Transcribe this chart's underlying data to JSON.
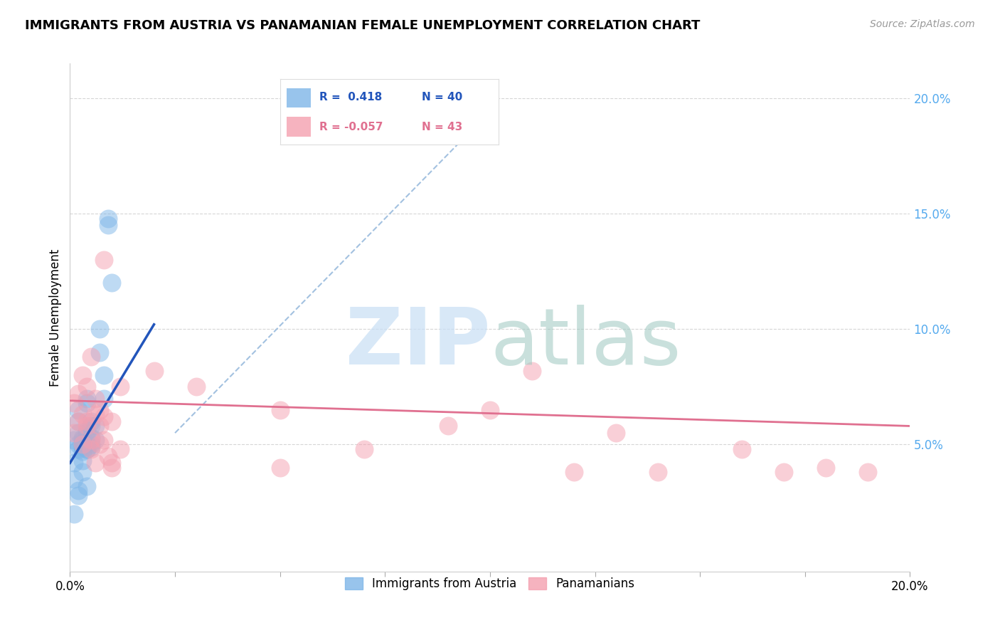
{
  "title": "IMMIGRANTS FROM AUSTRIA VS PANAMANIAN FEMALE UNEMPLOYMENT CORRELATION CHART",
  "source": "Source: ZipAtlas.com",
  "ylabel": "Female Unemployment",
  "xlim": [
    0.0,
    0.2
  ],
  "ylim": [
    -0.005,
    0.215
  ],
  "ytick_vals": [
    0.05,
    0.1,
    0.15,
    0.2
  ],
  "ytick_labels": [
    "5.0%",
    "10.0%",
    "15.0%",
    "20.0%"
  ],
  "xtick_vals": [
    0.0,
    0.025,
    0.05,
    0.075,
    0.1,
    0.125,
    0.15,
    0.175,
    0.2
  ],
  "xtick_labels": [
    "0.0%",
    "",
    "",
    "",
    "",
    "",
    "",
    "",
    "20.0%"
  ],
  "austria_color": "#7eb6e8",
  "panama_color": "#f4a0b0",
  "austria_line_color": "#2255bb",
  "panama_line_color": "#e07090",
  "trendline_dash_color": "#99bbdd",
  "grid_color": "#cccccc",
  "background_color": "#ffffff",
  "austria_scatter": [
    [
      0.001,
      0.052
    ],
    [
      0.002,
      0.05
    ],
    [
      0.002,
      0.048
    ],
    [
      0.002,
      0.055
    ],
    [
      0.003,
      0.05
    ],
    [
      0.003,
      0.049
    ],
    [
      0.003,
      0.052
    ],
    [
      0.003,
      0.047
    ],
    [
      0.003,
      0.053
    ],
    [
      0.004,
      0.048
    ],
    [
      0.004,
      0.056
    ],
    [
      0.004,
      0.068
    ],
    [
      0.004,
      0.07
    ],
    [
      0.004,
      0.05
    ],
    [
      0.004,
      0.055
    ],
    [
      0.004,
      0.048
    ],
    [
      0.005,
      0.06
    ],
    [
      0.005,
      0.05
    ],
    [
      0.005,
      0.049
    ],
    [
      0.005,
      0.053
    ],
    [
      0.005,
      0.058
    ],
    [
      0.006,
      0.058
    ],
    [
      0.006,
      0.052
    ],
    [
      0.007,
      0.09
    ],
    [
      0.007,
      0.1
    ],
    [
      0.008,
      0.08
    ],
    [
      0.008,
      0.07
    ],
    [
      0.009,
      0.145
    ],
    [
      0.009,
      0.148
    ],
    [
      0.01,
      0.12
    ],
    [
      0.002,
      0.03
    ],
    [
      0.002,
      0.028
    ],
    [
      0.001,
      0.02
    ],
    [
      0.003,
      0.038
    ],
    [
      0.002,
      0.06
    ],
    [
      0.002,
      0.065
    ],
    [
      0.001,
      0.042
    ],
    [
      0.003,
      0.043
    ],
    [
      0.001,
      0.035
    ],
    [
      0.004,
      0.032
    ]
  ],
  "panama_scatter": [
    [
      0.001,
      0.068
    ],
    [
      0.001,
      0.055
    ],
    [
      0.002,
      0.072
    ],
    [
      0.002,
      0.06
    ],
    [
      0.003,
      0.063
    ],
    [
      0.003,
      0.05
    ],
    [
      0.003,
      0.08
    ],
    [
      0.004,
      0.075
    ],
    [
      0.004,
      0.058
    ],
    [
      0.004,
      0.06
    ],
    [
      0.005,
      0.052
    ],
    [
      0.005,
      0.088
    ],
    [
      0.005,
      0.048
    ],
    [
      0.006,
      0.07
    ],
    [
      0.006,
      0.042
    ],
    [
      0.006,
      0.063
    ],
    [
      0.007,
      0.058
    ],
    [
      0.007,
      0.05
    ],
    [
      0.007,
      0.065
    ],
    [
      0.008,
      0.13
    ],
    [
      0.008,
      0.062
    ],
    [
      0.008,
      0.052
    ],
    [
      0.009,
      0.045
    ],
    [
      0.01,
      0.042
    ],
    [
      0.01,
      0.06
    ],
    [
      0.01,
      0.04
    ],
    [
      0.012,
      0.048
    ],
    [
      0.012,
      0.075
    ],
    [
      0.02,
      0.082
    ],
    [
      0.03,
      0.075
    ],
    [
      0.05,
      0.065
    ],
    [
      0.05,
      0.04
    ],
    [
      0.07,
      0.048
    ],
    [
      0.09,
      0.058
    ],
    [
      0.1,
      0.065
    ],
    [
      0.11,
      0.082
    ],
    [
      0.12,
      0.038
    ],
    [
      0.13,
      0.055
    ],
    [
      0.14,
      0.038
    ],
    [
      0.16,
      0.048
    ],
    [
      0.17,
      0.038
    ],
    [
      0.18,
      0.04
    ],
    [
      0.19,
      0.038
    ]
  ]
}
